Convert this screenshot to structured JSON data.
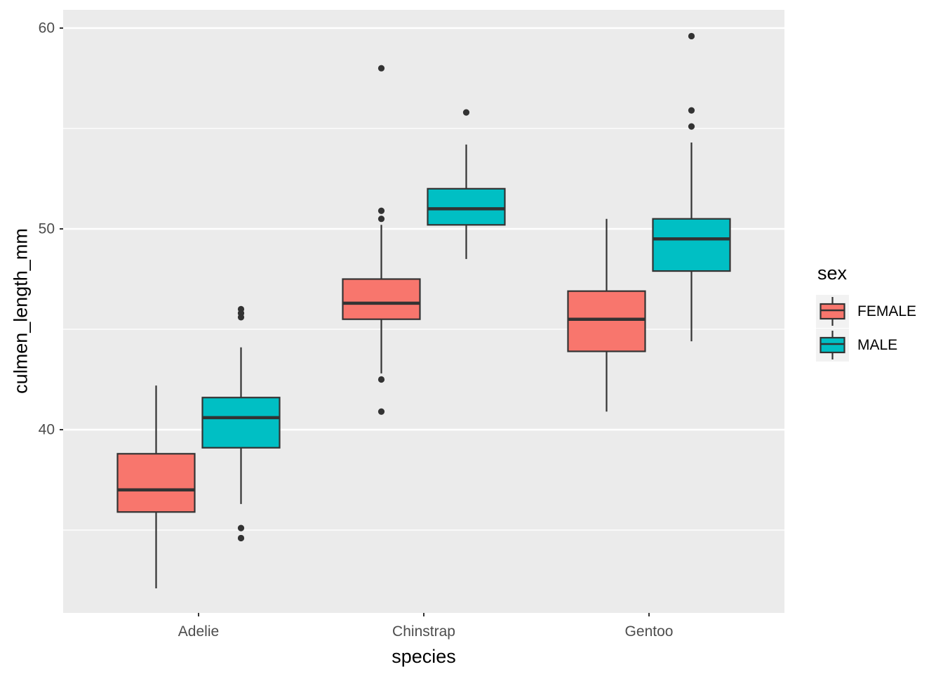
{
  "figure": {
    "background": "#FFFFFF",
    "panel_bg": "#EBEBEB",
    "grid_color": "#FFFFFF",
    "outline_color": "#333333",
    "tick_color": "#333333",
    "tick_label_color": "#4D4D4D",
    "legend_key_bg": "#F2F2F2"
  },
  "chart_data": {
    "type": "boxplot",
    "title": "",
    "xlabel": "species",
    "ylabel": "culmen_length_mm",
    "categories": [
      "Adelie",
      "Chinstrap",
      "Gentoo"
    ],
    "y_ticks": [
      40,
      50,
      60
    ],
    "y_minor_ticks": [
      35,
      45,
      55
    ],
    "ylim": [
      30.9,
      60.9
    ],
    "grid": true,
    "legend": {
      "title": "sex",
      "position": "right",
      "entries": [
        "FEMALE",
        "MALE"
      ]
    },
    "series": [
      {
        "name": "FEMALE",
        "color": "#F8766D",
        "boxes": [
          {
            "category": "Adelie",
            "whisker_low": 32.1,
            "q1": 35.9,
            "median": 37.0,
            "q3": 38.8,
            "whisker_high": 42.2,
            "outliers": []
          },
          {
            "category": "Chinstrap",
            "whisker_low": 42.8,
            "q1": 45.5,
            "median": 46.3,
            "q3": 47.5,
            "whisker_high": 50.2,
            "outliers": [
              40.9,
              42.5,
              50.5,
              50.9,
              58.0
            ]
          },
          {
            "category": "Gentoo",
            "whisker_low": 40.9,
            "q1": 43.9,
            "median": 45.5,
            "q3": 46.9,
            "whisker_high": 50.5,
            "outliers": []
          }
        ]
      },
      {
        "name": "MALE",
        "color": "#00BFC4",
        "boxes": [
          {
            "category": "Adelie",
            "whisker_low": 36.3,
            "q1": 39.1,
            "median": 40.6,
            "q3": 41.6,
            "whisker_high": 44.1,
            "outliers": [
              34.6,
              35.1,
              45.6,
              45.8,
              46.0
            ]
          },
          {
            "category": "Chinstrap",
            "whisker_low": 48.5,
            "q1": 50.2,
            "median": 51.0,
            "q3": 52.0,
            "whisker_high": 54.2,
            "outliers": [
              55.8
            ]
          },
          {
            "category": "Gentoo",
            "whisker_low": 44.4,
            "q1": 47.9,
            "median": 49.5,
            "q3": 50.5,
            "whisker_high": 54.3,
            "outliers": [
              55.1,
              55.9,
              59.6
            ]
          }
        ]
      }
    ]
  }
}
